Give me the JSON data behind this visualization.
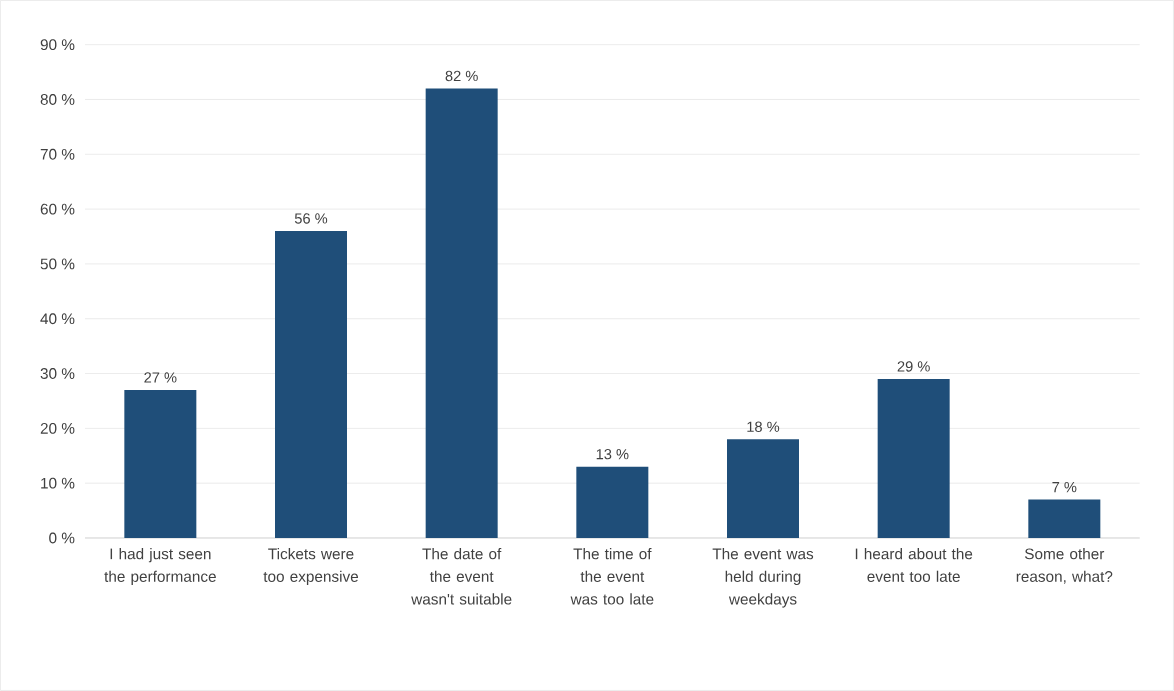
{
  "chart_data": {
    "type": "bar",
    "categories": [
      "I had just seen the performance",
      "Tickets were too expensive",
      "The date of the event wasn't suitable",
      "The time of the event was too late",
      "The event was held during weekdays",
      "I heard about the event too late",
      "Some other reason, what?"
    ],
    "values": [
      27,
      56,
      82,
      13,
      18,
      29,
      7
    ],
    "value_labels": [
      "27 %",
      "56 %",
      "82 %",
      "13 %",
      "18 %",
      "29 %",
      "7 %"
    ],
    "color": "#1f4e79",
    "ylim": [
      0,
      90
    ],
    "yticks": [
      {
        "value": 0,
        "label": "0 %"
      },
      {
        "value": 10,
        "label": "10 %"
      },
      {
        "value": 20,
        "label": "20 %"
      },
      {
        "value": 30,
        "label": "30 %"
      },
      {
        "value": 40,
        "label": "40 %"
      },
      {
        "value": 50,
        "label": "50 %"
      },
      {
        "value": 60,
        "label": "60 %"
      },
      {
        "value": 70,
        "label": "70 %"
      },
      {
        "value": 80,
        "label": "80 %"
      },
      {
        "value": 90,
        "label": "90 %"
      }
    ],
    "grid": "y"
  }
}
